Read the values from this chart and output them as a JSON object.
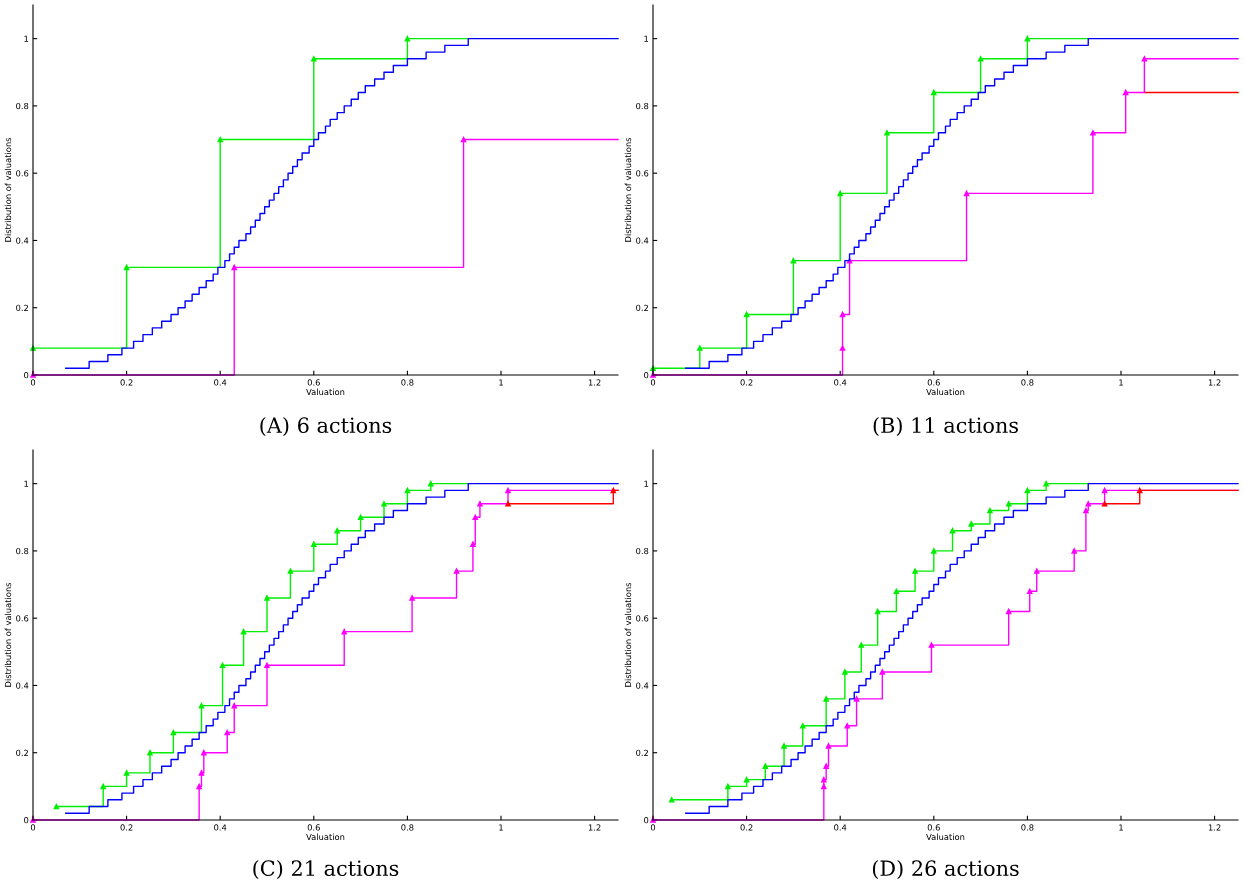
{
  "chart_data": [
    {
      "type": "step",
      "title": "(A) 6 actions",
      "xlabel": "Valuation",
      "ylabel": "Distribution of valuations",
      "xlim": [
        0,
        1.25
      ],
      "ylim": [
        0,
        1.1
      ],
      "xticks": [
        0,
        0.2,
        0.4,
        0.6,
        0.8,
        1,
        1.2
      ],
      "yticks": [
        0,
        0.2,
        0.4,
        0.6,
        0.8,
        1
      ],
      "grid": false,
      "series": [
        {
          "color": "#ff00ff",
          "marker": "triangle",
          "x": [
            0,
            0.43,
            0.92,
            1.25
          ],
          "values": [
            0,
            0.32,
            0.7,
            0.7
          ]
        },
        {
          "color": "#00ee00",
          "marker": "triangle",
          "x": [
            0,
            0.2,
            0.4,
            0.6,
            0.8,
            0.93
          ],
          "values": [
            0.08,
            0.32,
            0.7,
            0.94,
            1.0,
            1.0
          ]
        },
        {
          "color": "#0000ff",
          "marker": "none",
          "x": [
            0.07,
            0.12,
            0.16,
            0.19,
            0.215,
            0.235,
            0.255,
            0.275,
            0.295,
            0.31,
            0.325,
            0.34,
            0.355,
            0.37,
            0.385,
            0.395,
            0.41,
            0.42,
            0.43,
            0.44,
            0.455,
            0.465,
            0.475,
            0.485,
            0.495,
            0.505,
            0.515,
            0.525,
            0.535,
            0.545,
            0.555,
            0.565,
            0.575,
            0.59,
            0.6,
            0.61,
            0.625,
            0.635,
            0.65,
            0.665,
            0.68,
            0.695,
            0.71,
            0.73,
            0.75,
            0.77,
            0.8,
            0.84,
            0.88,
            0.93,
            1.25
          ],
          "values": [
            0.02,
            0.04,
            0.06,
            0.08,
            0.1,
            0.12,
            0.14,
            0.16,
            0.18,
            0.2,
            0.22,
            0.24,
            0.26,
            0.28,
            0.3,
            0.32,
            0.34,
            0.36,
            0.38,
            0.4,
            0.42,
            0.44,
            0.46,
            0.48,
            0.5,
            0.52,
            0.54,
            0.56,
            0.58,
            0.6,
            0.62,
            0.64,
            0.66,
            0.68,
            0.7,
            0.72,
            0.74,
            0.76,
            0.78,
            0.8,
            0.82,
            0.84,
            0.86,
            0.88,
            0.9,
            0.92,
            0.94,
            0.96,
            0.98,
            1.0,
            1.0
          ]
        }
      ]
    },
    {
      "type": "step",
      "title": "(B) 11 actions",
      "xlabel": "Valuation",
      "ylabel": "Distribution of valuations",
      "xlim": [
        0,
        1.25
      ],
      "ylim": [
        0,
        1.1
      ],
      "xticks": [
        0,
        0.2,
        0.4,
        0.6,
        0.8,
        1,
        1.2
      ],
      "yticks": [
        0,
        0.2,
        0.4,
        0.6,
        0.8,
        1
      ],
      "grid": false,
      "series": [
        {
          "color": "#ff0000",
          "marker": "none",
          "x": [
            1.05,
            1.25
          ],
          "values": [
            0.84,
            0.84
          ]
        },
        {
          "color": "#ff00ff",
          "marker": "triangle",
          "x": [
            0,
            0.405,
            0.405,
            0.42,
            0.67,
            0.94,
            1.01,
            1.05,
            1.25
          ],
          "values": [
            0,
            0.08,
            0.18,
            0.34,
            0.54,
            0.72,
            0.84,
            0.94,
            0.94
          ]
        },
        {
          "color": "#00ee00",
          "marker": "triangle",
          "x": [
            0,
            0.1,
            0.2,
            0.3,
            0.4,
            0.5,
            0.6,
            0.7,
            0.8,
            0.93
          ],
          "values": [
            0.02,
            0.08,
            0.18,
            0.34,
            0.54,
            0.72,
            0.84,
            0.94,
            1.0,
            1.0
          ]
        },
        {
          "color": "#0000ff",
          "marker": "none",
          "x": [
            0.07,
            0.12,
            0.16,
            0.19,
            0.215,
            0.235,
            0.255,
            0.275,
            0.295,
            0.31,
            0.325,
            0.34,
            0.355,
            0.37,
            0.385,
            0.395,
            0.41,
            0.42,
            0.43,
            0.44,
            0.455,
            0.465,
            0.475,
            0.485,
            0.495,
            0.505,
            0.515,
            0.525,
            0.535,
            0.545,
            0.555,
            0.565,
            0.575,
            0.59,
            0.6,
            0.61,
            0.625,
            0.635,
            0.65,
            0.665,
            0.68,
            0.695,
            0.71,
            0.73,
            0.75,
            0.77,
            0.8,
            0.84,
            0.88,
            0.93,
            1.25
          ],
          "values": [
            0.02,
            0.04,
            0.06,
            0.08,
            0.1,
            0.12,
            0.14,
            0.16,
            0.18,
            0.2,
            0.22,
            0.24,
            0.26,
            0.28,
            0.3,
            0.32,
            0.34,
            0.36,
            0.38,
            0.4,
            0.42,
            0.44,
            0.46,
            0.48,
            0.5,
            0.52,
            0.54,
            0.56,
            0.58,
            0.6,
            0.62,
            0.64,
            0.66,
            0.68,
            0.7,
            0.72,
            0.74,
            0.76,
            0.78,
            0.8,
            0.82,
            0.84,
            0.86,
            0.88,
            0.9,
            0.92,
            0.94,
            0.96,
            0.98,
            1.0,
            1.0
          ]
        }
      ]
    },
    {
      "type": "step",
      "title": "(C) 21 actions",
      "xlabel": "Valuation",
      "ylabel": "Distribution of valuations",
      "xlim": [
        0,
        1.25
      ],
      "ylim": [
        0,
        1.1
      ],
      "xticks": [
        0,
        0.2,
        0.4,
        0.6,
        0.8,
        1,
        1.2
      ],
      "yticks": [
        0,
        0.2,
        0.4,
        0.6,
        0.8,
        1
      ],
      "grid": false,
      "series": [
        {
          "color": "#ff00ff",
          "marker": "triangle",
          "x": [
            0,
            0.355,
            0.36,
            0.365,
            0.415,
            0.43,
            0.5,
            0.665,
            0.81,
            0.905,
            0.94,
            0.945,
            0.955,
            1.015,
            1.25
          ],
          "values": [
            0,
            0.1,
            0.14,
            0.2,
            0.26,
            0.34,
            0.46,
            0.56,
            0.66,
            0.74,
            0.82,
            0.9,
            0.94,
            0.98,
            0.98
          ]
        },
        {
          "color": "#ff0000",
          "marker": "triangle",
          "x": [
            1.015,
            1.24,
            1.25
          ],
          "values": [
            0.94,
            0.98,
            0.98
          ]
        },
        {
          "color": "#00ee00",
          "marker": "triangle",
          "x": [
            0.05,
            0.15,
            0.2,
            0.25,
            0.3,
            0.36,
            0.405,
            0.45,
            0.5,
            0.55,
            0.6,
            0.65,
            0.7,
            0.75,
            0.8,
            0.85,
            0.93
          ],
          "values": [
            0.04,
            0.1,
            0.14,
            0.2,
            0.26,
            0.34,
            0.46,
            0.56,
            0.66,
            0.74,
            0.82,
            0.86,
            0.9,
            0.94,
            0.98,
            1.0,
            1.0
          ]
        },
        {
          "color": "#0000ff",
          "marker": "none",
          "x": [
            0.07,
            0.12,
            0.16,
            0.19,
            0.215,
            0.235,
            0.255,
            0.275,
            0.295,
            0.31,
            0.325,
            0.34,
            0.355,
            0.37,
            0.385,
            0.395,
            0.41,
            0.42,
            0.43,
            0.44,
            0.455,
            0.465,
            0.475,
            0.485,
            0.495,
            0.505,
            0.515,
            0.525,
            0.535,
            0.545,
            0.555,
            0.565,
            0.575,
            0.59,
            0.6,
            0.61,
            0.625,
            0.635,
            0.65,
            0.665,
            0.68,
            0.695,
            0.71,
            0.73,
            0.75,
            0.77,
            0.8,
            0.84,
            0.88,
            0.93,
            1.25
          ],
          "values": [
            0.02,
            0.04,
            0.06,
            0.08,
            0.1,
            0.12,
            0.14,
            0.16,
            0.18,
            0.2,
            0.22,
            0.24,
            0.26,
            0.28,
            0.3,
            0.32,
            0.34,
            0.36,
            0.38,
            0.4,
            0.42,
            0.44,
            0.46,
            0.48,
            0.5,
            0.52,
            0.54,
            0.56,
            0.58,
            0.6,
            0.62,
            0.64,
            0.66,
            0.68,
            0.7,
            0.72,
            0.74,
            0.76,
            0.78,
            0.8,
            0.82,
            0.84,
            0.86,
            0.88,
            0.9,
            0.92,
            0.94,
            0.96,
            0.98,
            1.0,
            1.0
          ]
        }
      ]
    },
    {
      "type": "step",
      "title": "(D) 26 actions",
      "xlabel": "Valuation",
      "ylabel": "Distribution of valuations",
      "xlim": [
        0,
        1.25
      ],
      "ylim": [
        0,
        1.1
      ],
      "xticks": [
        0,
        0.2,
        0.4,
        0.6,
        0.8,
        1,
        1.2
      ],
      "yticks": [
        0,
        0.2,
        0.4,
        0.6,
        0.8,
        1
      ],
      "grid": false,
      "series": [
        {
          "color": "#ff00ff",
          "marker": "triangle",
          "x": [
            0,
            0.365,
            0.365,
            0.37,
            0.375,
            0.415,
            0.435,
            0.49,
            0.595,
            0.76,
            0.805,
            0.82,
            0.9,
            0.925,
            0.93,
            0.965,
            1.25
          ],
          "values": [
            0,
            0.1,
            0.12,
            0.16,
            0.22,
            0.28,
            0.36,
            0.44,
            0.52,
            0.62,
            0.68,
            0.74,
            0.8,
            0.92,
            0.94,
            0.98,
            0.98
          ]
        },
        {
          "color": "#ff0000",
          "marker": "triangle",
          "x": [
            0.965,
            1.04,
            1.25
          ],
          "values": [
            0.94,
            0.98,
            0.98
          ]
        },
        {
          "color": "#00ee00",
          "marker": "triangle",
          "x": [
            0.04,
            0.16,
            0.2,
            0.24,
            0.28,
            0.32,
            0.37,
            0.41,
            0.445,
            0.48,
            0.52,
            0.56,
            0.6,
            0.64,
            0.68,
            0.72,
            0.76,
            0.8,
            0.84,
            0.93
          ],
          "values": [
            0.06,
            0.1,
            0.12,
            0.16,
            0.22,
            0.28,
            0.36,
            0.44,
            0.52,
            0.62,
            0.68,
            0.74,
            0.8,
            0.86,
            0.88,
            0.92,
            0.94,
            0.98,
            1.0,
            1.0
          ]
        },
        {
          "color": "#0000ff",
          "marker": "none",
          "x": [
            0.07,
            0.12,
            0.16,
            0.19,
            0.215,
            0.235,
            0.255,
            0.275,
            0.295,
            0.31,
            0.325,
            0.34,
            0.355,
            0.37,
            0.385,
            0.395,
            0.41,
            0.42,
            0.43,
            0.44,
            0.455,
            0.465,
            0.475,
            0.485,
            0.495,
            0.505,
            0.515,
            0.525,
            0.535,
            0.545,
            0.555,
            0.565,
            0.575,
            0.59,
            0.6,
            0.61,
            0.625,
            0.635,
            0.65,
            0.665,
            0.68,
            0.695,
            0.71,
            0.73,
            0.75,
            0.77,
            0.8,
            0.84,
            0.88,
            0.93,
            1.25
          ],
          "values": [
            0.02,
            0.04,
            0.06,
            0.08,
            0.1,
            0.12,
            0.14,
            0.16,
            0.18,
            0.2,
            0.22,
            0.24,
            0.26,
            0.28,
            0.3,
            0.32,
            0.34,
            0.36,
            0.38,
            0.4,
            0.42,
            0.44,
            0.46,
            0.48,
            0.5,
            0.52,
            0.54,
            0.56,
            0.58,
            0.6,
            0.62,
            0.64,
            0.66,
            0.68,
            0.7,
            0.72,
            0.74,
            0.76,
            0.78,
            0.8,
            0.82,
            0.84,
            0.86,
            0.88,
            0.9,
            0.92,
            0.94,
            0.96,
            0.98,
            1.0,
            1.0
          ]
        }
      ]
    }
  ]
}
